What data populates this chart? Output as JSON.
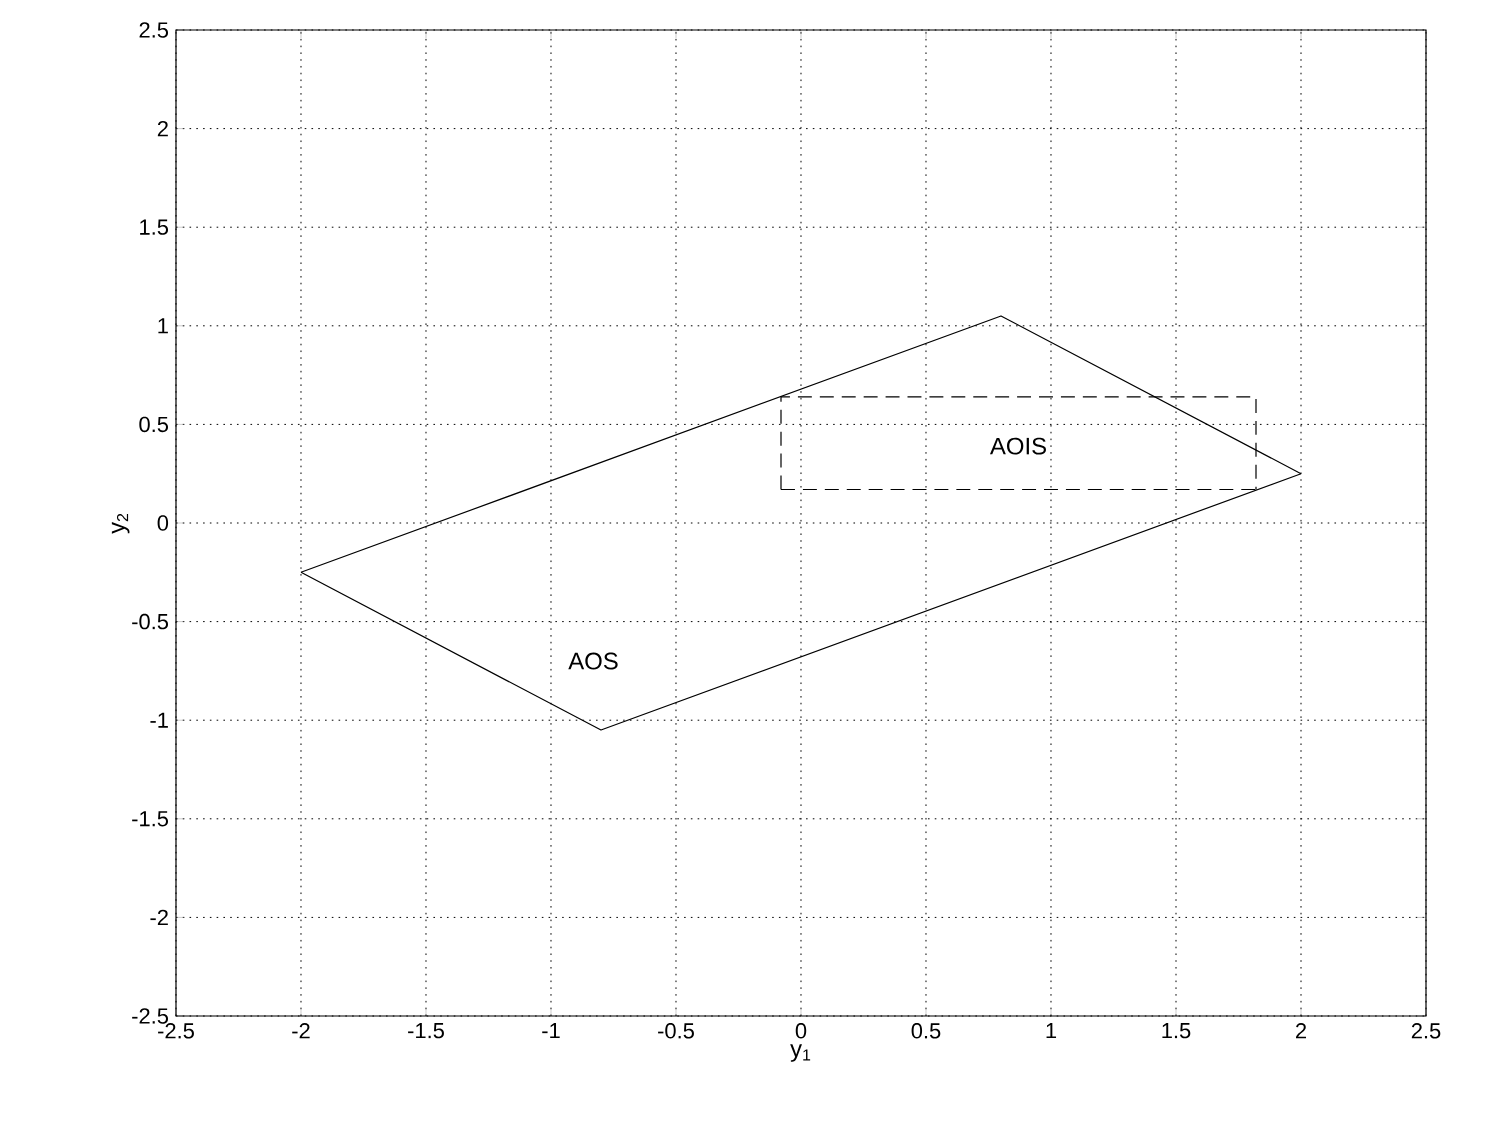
{
  "chart_data": {
    "type": "line",
    "xlabel": "y$_{1}$",
    "ylabel": "y$_{2}$",
    "xlim": [
      -2.5,
      2.5
    ],
    "ylim": [
      -2.5,
      2.5
    ],
    "xticks": [
      -2.5,
      -2,
      -1.5,
      -1,
      -0.5,
      0,
      0.5,
      1,
      1.5,
      2,
      2.5
    ],
    "yticks": [
      -2.5,
      -2,
      -1.5,
      -1,
      -0.5,
      0,
      0.5,
      1,
      1.5,
      2,
      2.5
    ],
    "grid": true,
    "marker": "none",
    "series": [
      {
        "color": "#000000",
        "line_style": "solid",
        "x": [
          -2,
          0.8,
          2
        ],
        "values": [
          -0.25,
          1.05,
          0.25
        ]
      },
      {
        "color": "#000000",
        "line_style": "solid",
        "x": [
          -2,
          -0.8,
          2
        ],
        "values": [
          -0.25,
          -1.05,
          0.25
        ]
      },
      {
        "color": "#000000",
        "line_style": "dashed",
        "x": [
          -0.08,
          -0.08,
          1.82,
          1.82
        ],
        "values": [
          0.17,
          0.64,
          0.64,
          0.17
        ]
      },
      {
        "color": "#000000",
        "line_style": "dashed",
        "x": [
          -0.08,
          1.82
        ],
        "values": [
          0.17,
          0.17
        ]
      }
    ],
    "annotations": [
      "AOIS",
      "AOS"
    ]
  }
}
